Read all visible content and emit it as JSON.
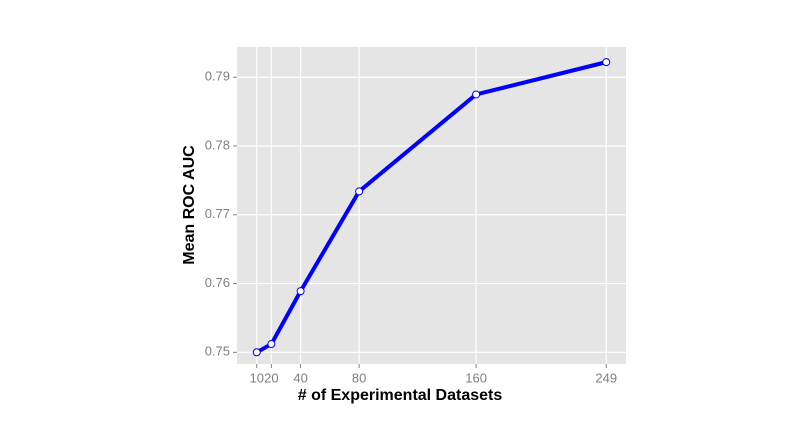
{
  "chart_data": {
    "type": "line",
    "x_label": "# of Experimental Datasets",
    "y_label": "Mean ROC AUC",
    "x": [
      10,
      20,
      40,
      80,
      160,
      249
    ],
    "series": [
      {
        "color": "#0000ff",
        "values": [
          0.75,
          0.7512,
          0.7589,
          0.7734,
          0.7875,
          0.7922
        ]
      }
    ],
    "xlim": [
      -3.5,
      262.5
    ],
    "ylim": [
      0.7483,
      0.7944
    ],
    "xticks": [
      10,
      20,
      40,
      80,
      160,
      249
    ],
    "yticks": [
      0.75,
      0.76,
      0.77,
      0.78,
      0.79
    ],
    "grid": true
  }
}
